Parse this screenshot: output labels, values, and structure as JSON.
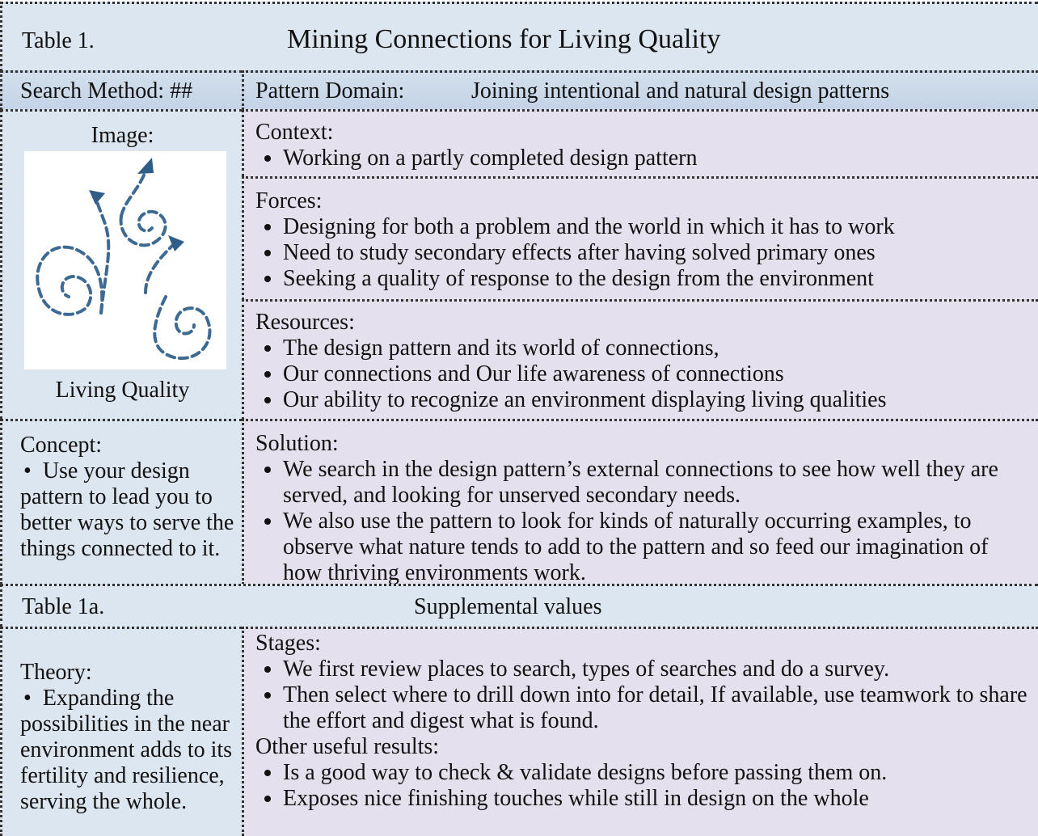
{
  "table1": {
    "label": "Table 1.",
    "title": "Mining Connections for Living Quality",
    "search_method": "Search Method: ##",
    "pattern_domain_label": "Pattern Domain:",
    "pattern_domain": "Joining intentional and natural design patterns",
    "image_label": "Image:",
    "image_caption": "Living Quality",
    "context": {
      "heading": "Context:",
      "items": [
        "Working on a partly completed design pattern"
      ]
    },
    "forces": {
      "heading": "Forces:",
      "items": [
        "Designing for both a problem and the world in which it has to work",
        "Need to study secondary effects after having solved primary ones",
        "Seeking a quality of response to the design from the environment"
      ]
    },
    "resources": {
      "heading": "Resources:",
      "items": [
        "The design pattern and its world of connections,",
        "Our connections and Our life awareness of connections",
        "Our ability to recognize an environment displaying living qualities"
      ]
    },
    "concept": {
      "heading": "Concept:",
      "items": [
        "Use your design pattern to lead you to better ways to serve the things connected to it."
      ]
    },
    "solution": {
      "heading": "Solution:",
      "items": [
        "We search in the design pattern’s external connections to see how well they are served, and looking for unserved secondary needs.",
        "We also use the pattern to look for kinds of naturally occurring examples, to observe what nature tends to add to the pattern and so feed our imagination of how thriving environments work."
      ]
    }
  },
  "table1a": {
    "label": "Table 1a.",
    "title": "Supplemental values",
    "theory": {
      "heading": "Theory:",
      "items": [
        "Expanding the possibilities in the near environment adds to its fertility and resilience, serving the whole."
      ]
    },
    "stages": {
      "heading": "Stages:",
      "items": [
        "We first review places to search, types of searches and do a survey.",
        "Then select where to drill down into for detail, If available, use teamwork to share the effort and digest what is found."
      ]
    },
    "other_results": {
      "heading": "Other useful results:",
      "items": [
        "Is a good way to check & validate designs before passing them on.",
        "Exposes nice finishing touches while still in design on the whole"
      ]
    }
  }
}
